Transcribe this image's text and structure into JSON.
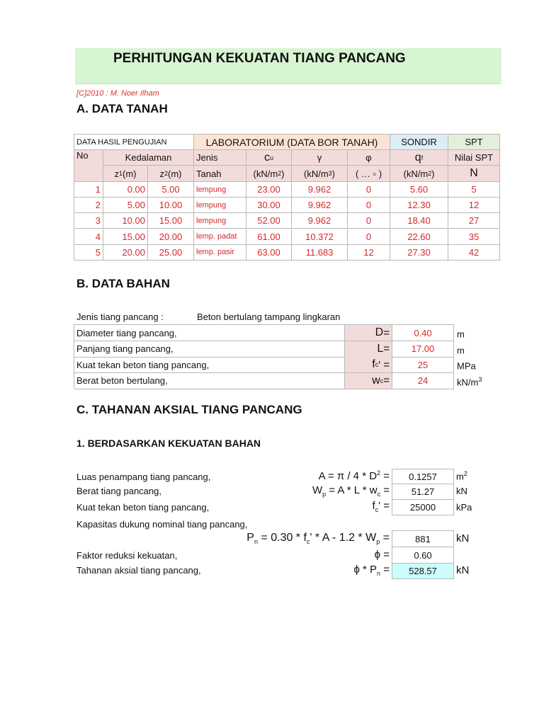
{
  "title": "PERHITUNGAN KEKUATAN TIANG PANCANG",
  "copyright": "[C]2010 : M. Noer Ilham",
  "section_a": {
    "heading": "A. DATA TANAH",
    "header_row1": {
      "data": "DATA HASIL PENGUJIAN",
      "lab": "LABORATORIUM (DATA BOR TANAH)",
      "sondir": "SONDIR",
      "spt": "SPT"
    },
    "header_row2": {
      "no": "No",
      "kedalaman": "Kedalaman",
      "jenis": "Jenis",
      "cu": "c",
      "cu_sub": "u",
      "gamma": "γ",
      "phi": "φ",
      "qf": "q",
      "qf_sub": "f",
      "spt": "Nilai SPT"
    },
    "header_row3": {
      "z1": "z",
      "z1_sub": "1",
      "z1_unit": " (m)",
      "z2": "z",
      "z2_sub": "2",
      "z2_unit": " (m)",
      "tanah": "Tanah",
      "cu_unit": "(kN/m",
      "cu_sup": "2",
      "gamma_unit": "(kN/m",
      "gamma_sup": "3",
      "phi_unit": "( … ▫ )",
      "qf_unit": "(kN/m",
      "qf_sup": "2",
      "n": "N"
    },
    "close": ")",
    "rows": [
      [
        "1",
        "0.00",
        "5.00",
        "lempung",
        "23.00",
        "9.962",
        "0",
        "5.60",
        "5"
      ],
      [
        "2",
        "5.00",
        "10.00",
        "lempung",
        "30.00",
        "9.962",
        "0",
        "12.30",
        "12"
      ],
      [
        "3",
        "10.00",
        "15.00",
        "lempung",
        "52.00",
        "9.962",
        "0",
        "18.40",
        "27"
      ],
      [
        "4",
        "15.00",
        "20.00",
        "lemp. padat",
        "61.00",
        "10.372",
        "0",
        "22.60",
        "35"
      ],
      [
        "5",
        "20.00",
        "25.00",
        "lemp. pasir",
        "63.00",
        "11.683",
        "12",
        "27.30",
        "42"
      ]
    ]
  },
  "section_b": {
    "heading": "B. DATA BAHAN",
    "jenis_label": "Jenis tiang pancang :",
    "jenis_value": "Beton bertulang tampang lingkaran",
    "rows": [
      {
        "label": "Diameter tiang pancang,",
        "sym": "D",
        "sub": "",
        "eq": " =",
        "value": "0.40",
        "unit": "m",
        "sup": ""
      },
      {
        "label": "Panjang tiang pancang,",
        "sym": "L",
        "sub": "",
        "eq": " =",
        "value": "17.00",
        "unit": "m",
        "sup": ""
      },
      {
        "label": "Kuat tekan beton tiang pancang,",
        "sym": "f",
        "sub": "c",
        "eq": "' =",
        "value": "25",
        "unit": "MPa",
        "sup": ""
      },
      {
        "label": "Berat beton bertulang,",
        "sym": "w",
        "sub": "c",
        "eq": " =",
        "value": "24",
        "unit": "kN/m",
        "sup": "3"
      }
    ]
  },
  "section_c": {
    "heading": "C. TAHANAN AKSIAL TIANG PANCANG",
    "sub1": "1. BERDASARKAN KEKUATAN BAHAN",
    "luas": {
      "label": "Luas penampang tiang pancang,",
      "f1": "A = π / 4 * D",
      "sup": "2",
      "f2": " =",
      "value": "0.1257",
      "unit": "m",
      "unit_sup": "2"
    },
    "berat": {
      "label": "Berat tiang pancang,",
      "f1": "W",
      "sub": "p",
      "f2": " =  A * L * w",
      "sub2": "c",
      "f3": " =",
      "value": "51.27",
      "unit": "kN"
    },
    "kuat": {
      "label": "Kuat tekan beton tiang pancang,",
      "f1": "f",
      "sub": "c",
      "f2": "' =",
      "value": "25000",
      "unit": "kPa"
    },
    "kapasitas_label": "Kapasitas dukung nominal tiang pancang,",
    "pn": {
      "f1": "P",
      "sub": "n",
      "f2": " = 0.30 * f",
      "sub2": "c",
      "f3": "' * A - 1.2 * W",
      "sub3": "p",
      "f4": "  =",
      "value": "881",
      "unit": "kN"
    },
    "phi": {
      "label": "Faktor reduksi kekuatan,",
      "f1": "ϕ =",
      "value": "0.60"
    },
    "tahanan": {
      "label": "Tahanan aksial tiang pancang,",
      "f1": "ϕ * P",
      "sub": "n",
      "f2": " =",
      "value": "528.57",
      "unit": "kN"
    }
  }
}
